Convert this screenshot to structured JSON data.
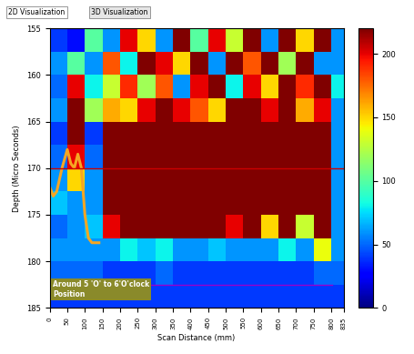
{
  "chart_data": {
    "type": "heatmap",
    "tabs": [
      "2D Visualization",
      "3D Visualization"
    ],
    "x_label": "Scan Distance (mm)",
    "y_label": "Depth (Micro Seconds)",
    "annotation": "Around 5 'O' to 6'O'clock\nPosition",
    "xlim": [
      0,
      835
    ],
    "xticks": [
      0,
      50,
      100,
      150,
      200,
      250,
      300,
      350,
      400,
      450,
      500,
      550,
      600,
      650,
      700,
      750,
      800,
      835
    ],
    "ylim": [
      185,
      155
    ],
    "yticks": [
      155,
      160,
      165,
      170,
      175,
      180,
      185
    ],
    "color": "jet",
    "x_edges": [
      0,
      50,
      100,
      150,
      200,
      250,
      300,
      350,
      400,
      450,
      500,
      550,
      600,
      650,
      700,
      750,
      800,
      835
    ],
    "y_edges": [
      155,
      157.5,
      160,
      162.5,
      165,
      167.5,
      170,
      172.5,
      175,
      177.5,
      180,
      182.5,
      185
    ],
    "cells": [
      [
        40,
        30,
        100,
        60,
        200,
        150,
        60,
        220,
        100,
        200,
        130,
        220,
        60,
        220,
        150,
        220,
        60
      ],
      [
        60,
        100,
        60,
        180,
        80,
        220,
        200,
        150,
        220,
        60,
        220,
        180,
        220,
        120,
        220,
        60,
        60
      ],
      [
        50,
        200,
        80,
        130,
        190,
        120,
        180,
        60,
        200,
        220,
        80,
        200,
        150,
        220,
        190,
        220,
        80
      ],
      [
        60,
        220,
        120,
        160,
        150,
        200,
        220,
        200,
        180,
        150,
        220,
        220,
        200,
        220,
        160,
        200,
        60
      ],
      [
        40,
        220,
        40,
        220,
        220,
        220,
        220,
        220,
        220,
        220,
        220,
        220,
        220,
        220,
        220,
        220,
        60
      ],
      [
        50,
        200,
        50,
        220,
        220,
        220,
        220,
        220,
        220,
        220,
        220,
        220,
        220,
        220,
        220,
        220,
        60
      ],
      [
        60,
        150,
        60,
        220,
        220,
        220,
        220,
        220,
        220,
        220,
        220,
        220,
        220,
        220,
        220,
        220,
        60
      ],
      [
        70,
        60,
        60,
        220,
        220,
        220,
        220,
        220,
        220,
        220,
        220,
        220,
        220,
        220,
        220,
        220,
        60
      ],
      [
        50,
        60,
        70,
        200,
        220,
        220,
        220,
        220,
        220,
        220,
        200,
        220,
        150,
        220,
        130,
        220,
        60
      ],
      [
        60,
        60,
        60,
        60,
        80,
        70,
        80,
        60,
        60,
        70,
        60,
        60,
        60,
        80,
        60,
        140,
        60
      ],
      [
        50,
        50,
        50,
        40,
        40,
        40,
        50,
        40,
        40,
        40,
        40,
        40,
        40,
        40,
        40,
        50,
        50
      ],
      [
        40,
        40,
        40,
        40,
        40,
        40,
        40,
        40,
        40,
        40,
        40,
        40,
        40,
        40,
        40,
        40,
        40
      ]
    ],
    "colorbar": {
      "lim": [
        0,
        220
      ],
      "ticks": [
        0,
        50,
        100,
        150,
        200
      ]
    },
    "curve": {
      "color": "#f5a623",
      "x": [
        0,
        10,
        20,
        35,
        50,
        60,
        70,
        80,
        90,
        100,
        110,
        120,
        140
      ],
      "y": [
        172,
        173,
        172.5,
        170,
        168,
        169.5,
        170,
        168.5,
        170,
        175,
        177.5,
        178,
        178
      ]
    },
    "hlines": [
      {
        "value": 170,
        "color": "#cc0000"
      },
      {
        "value": 182.5,
        "color": "#9900cc"
      }
    ]
  }
}
